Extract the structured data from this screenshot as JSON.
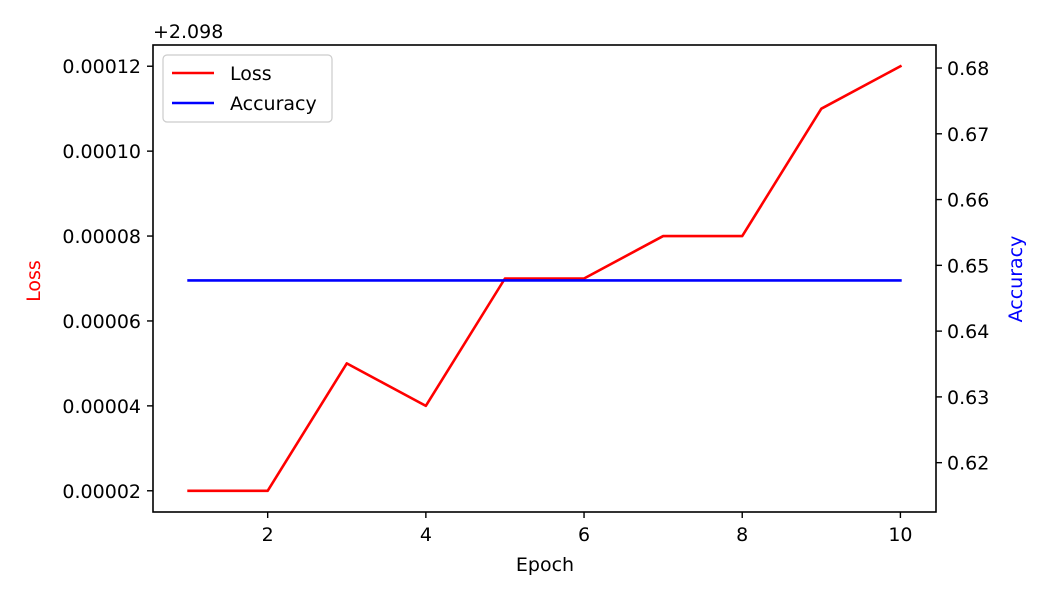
{
  "chart_data": {
    "type": "line",
    "title": "",
    "xlabel": "Epoch",
    "x": [
      1,
      2,
      3,
      4,
      5,
      6,
      7,
      8,
      9,
      10
    ],
    "xlim": [
      0.55,
      10.45
    ],
    "xticks": [
      2,
      4,
      6,
      8,
      10
    ],
    "xtick_labels": [
      "2",
      "4",
      "6",
      "8",
      "10"
    ],
    "grid": false,
    "legend_position": "upper-left",
    "left_axis": {
      "label": "Loss",
      "label_color": "#ff0000",
      "offset_label": "+2.098",
      "offset": 2.098,
      "lim": [
        1.5e-05,
        0.000125
      ],
      "ticks": [
        2e-05,
        4e-05,
        6e-05,
        8e-05,
        0.0001,
        0.00012
      ],
      "tick_labels": [
        "0.00002",
        "0.00004",
        "0.00006",
        "0.00008",
        "0.00010",
        "0.00012"
      ]
    },
    "right_axis": {
      "label": "Accuracy",
      "label_color": "#0000ff",
      "lim": [
        0.6125,
        0.6835
      ],
      "ticks": [
        0.62,
        0.63,
        0.64,
        0.65,
        0.66,
        0.67,
        0.68
      ],
      "tick_labels": [
        "0.62",
        "0.63",
        "0.64",
        "0.65",
        "0.66",
        "0.67",
        "0.68"
      ]
    },
    "series": [
      {
        "name": "Loss",
        "axis": "left",
        "color": "#ff0000",
        "values": [
          2.09802,
          2.09802,
          2.09805,
          2.09804,
          2.09807,
          2.09807,
          2.09808,
          2.09808,
          2.09811,
          2.09812
        ]
      },
      {
        "name": "Accuracy",
        "axis": "right",
        "color": "#0000ff",
        "values": [
          0.6477,
          0.6477,
          0.6477,
          0.6477,
          0.6477,
          0.6477,
          0.6477,
          0.6477,
          0.6477,
          0.6477
        ]
      }
    ]
  }
}
